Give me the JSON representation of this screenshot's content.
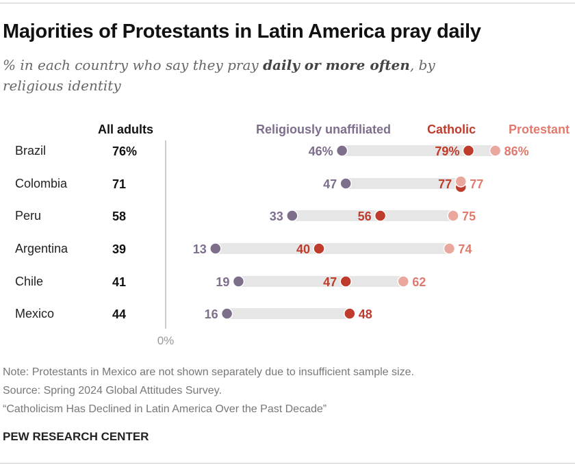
{
  "title": "Majorities of Protestants in Latin America pray daily",
  "subtitle_pre": "% in each country who say they pray ",
  "subtitle_bold": "daily or more often",
  "subtitle_post": ", by religious identity",
  "notes": [
    "Note: Protestants in Mexico are not shown separately due to insufficient sample size.",
    "Source: Spring 2024 Global Attitudes Survey.",
    "“Catholicism Has Declined in Latin America Over the Past Decade”"
  ],
  "brand": "PEW RESEARCH CENTER",
  "colors": {
    "unaffiliated": "#7d6e8c",
    "catholic": "#bf3b2c",
    "protestant_dot": "#eaa79e",
    "protestant_label": "#e07a6e",
    "bar": "#e6e6e6"
  },
  "chart_data": {
    "type": "dot",
    "all_adults_header": "All adults",
    "axis_label": "0%",
    "xlim": [
      0,
      100
    ],
    "categories": [
      "Brazil",
      "Colombia",
      "Peru",
      "Argentina",
      "Chile",
      "Mexico"
    ],
    "all_adults": [
      76,
      71,
      58,
      39,
      41,
      44
    ],
    "all_adults_labels": [
      "76%",
      "71",
      "58",
      "39",
      "41",
      "44"
    ],
    "series": [
      {
        "name": "Religiously unaffiliated",
        "values": [
          46,
          47,
          33,
          13,
          19,
          16
        ],
        "labels": [
          "46%",
          "47",
          "33",
          "13",
          "19",
          "16"
        ]
      },
      {
        "name": "Catholic",
        "values": [
          79,
          77,
          56,
          40,
          47,
          48
        ],
        "labels": [
          "79%",
          "77",
          "56",
          "40",
          "47",
          "48"
        ]
      },
      {
        "name": "Protestant",
        "values": [
          86,
          77,
          75,
          74,
          62,
          null
        ],
        "labels": [
          "86%",
          "77",
          "75",
          "74",
          "62",
          ""
        ]
      }
    ]
  }
}
